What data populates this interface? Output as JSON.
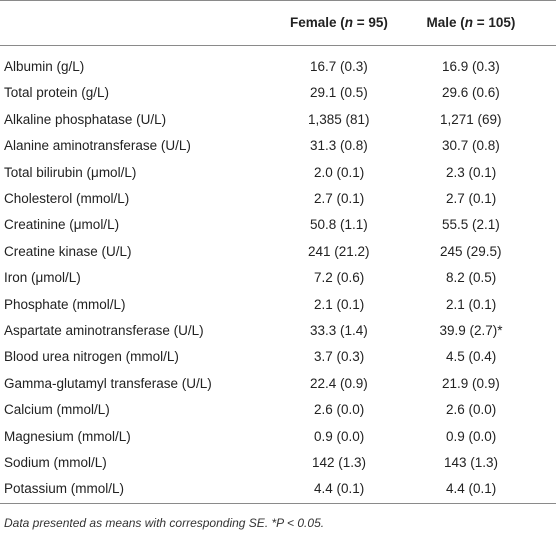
{
  "table": {
    "columns": [
      [
        "Female (",
        "n",
        " = 95)"
      ],
      [
        "Male (",
        "n",
        " = 105)"
      ]
    ],
    "rows": [
      [
        "Albumin (g/L)",
        "16.7 (0.3)",
        "16.9 (0.3)"
      ],
      [
        "Total protein (g/L)",
        "29.1 (0.5)",
        "29.6 (0.6)"
      ],
      [
        "Alkaline phosphatase (U/L)",
        "1,385 (81)",
        "1,271 (69)"
      ],
      [
        "Alanine aminotransferase (U/L)",
        "31.3 (0.8)",
        "30.7 (0.8)"
      ],
      [
        "Total bilirubin (μmol/L)",
        "2.0 (0.1)",
        "2.3 (0.1)"
      ],
      [
        "Cholesterol (mmol/L)",
        "2.7 (0.1)",
        "2.7 (0.1)"
      ],
      [
        "Creatinine (μmol/L)",
        "50.8 (1.1)",
        "55.5 (2.1)"
      ],
      [
        "Creatine kinase (U/L)",
        "241 (21.2)",
        "245 (29.5)"
      ],
      [
        "Iron (μmol/L)",
        "7.2 (0.6)",
        "8.2 (0.5)"
      ],
      [
        "Phosphate (mmol/L)",
        "2.1 (0.1)",
        "2.1 (0.1)"
      ],
      [
        "Aspartate aminotransferase (U/L)",
        "33.3 (1.4)",
        "39.9 (2.7)*"
      ],
      [
        "Blood urea nitrogen (mmol/L)",
        "3.7 (0.3)",
        "4.5 (0.4)"
      ],
      [
        "Gamma-glutamyl transferase (U/L)",
        "22.4 (0.9)",
        "21.9 (0.9)"
      ],
      [
        "Calcium (mmol/L)",
        "2.6 (0.0)",
        "2.6 (0.0)"
      ],
      [
        "Magnesium (mmol/L)",
        "0.9 (0.0)",
        "0.9 (0.0)"
      ],
      [
        "Sodium (mmol/L)",
        "142 (1.3)",
        "143 (1.3)"
      ],
      [
        "Potassium (mmol/L)",
        "4.4 (0.1)",
        "4.4 (0.1)"
      ]
    ],
    "footnote": "Data presented as means with corresponding SE. *P < 0.05."
  }
}
